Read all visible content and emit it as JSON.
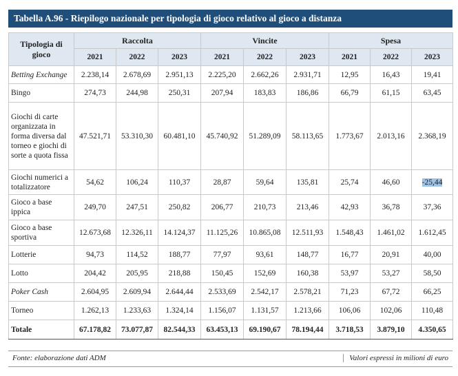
{
  "title": "Tabella A.96 - Riepilogo nazionale per tipologia di gioco relativo al gioco a distanza",
  "header": {
    "row_label": "Tipologia di gioco",
    "groups": [
      "Raccolta",
      "Vincite",
      "Spesa"
    ],
    "years": [
      "2021",
      "2022",
      "2023",
      "2021",
      "2022",
      "2023",
      "2021",
      "2022",
      "2023"
    ]
  },
  "rows": [
    {
      "name": "Betting Exchange",
      "values": [
        "2.238,14",
        "2.678,69",
        "2.951,13",
        "2.225,20",
        "2.662,26",
        "2.931,71",
        "12,95",
        "16,43",
        "19,41"
      ]
    },
    {
      "name": "Bingo",
      "values": [
        "274,73",
        "244,98",
        "250,31",
        "207,94",
        "183,83",
        "186,86",
        "66,79",
        "61,15",
        "63,45"
      ]
    },
    {
      "name": "Giochi di carte organizzata in forma diversa dal torneo e giochi di sorte a quota fissa",
      "values": [
        "47.521,71",
        "53.310,30",
        "60.481,10",
        "45.740,92",
        "51.289,09",
        "58.113,65",
        "1.773,67",
        "2.013,16",
        "2.368,19"
      ]
    },
    {
      "name": "Giochi numerici a totalizzatore",
      "values": [
        "54,62",
        "106,24",
        "110,37",
        "28,87",
        "59,64",
        "135,81",
        "25,74",
        "46,60",
        "-25,44"
      ]
    },
    {
      "name": "Gioco a base ippica",
      "values": [
        "249,70",
        "247,51",
        "250,82",
        "206,77",
        "210,73",
        "213,46",
        "42,93",
        "36,78",
        "37,36"
      ]
    },
    {
      "name": "Gioco a base sportiva",
      "values": [
        "12.673,68",
        "12.326,11",
        "14.124,37",
        "11.125,26",
        "10.865,08",
        "12.511,93",
        "1.548,43",
        "1.461,02",
        "1.612,45"
      ]
    },
    {
      "name": "Lotterie",
      "values": [
        "94,73",
        "114,52",
        "188,77",
        "77,97",
        "93,61",
        "148,77",
        "16,77",
        "20,91",
        "40,00"
      ]
    },
    {
      "name": "Lotto",
      "values": [
        "204,42",
        "205,95",
        "218,88",
        "150,45",
        "152,69",
        "160,38",
        "53,97",
        "53,27",
        "58,50"
      ]
    },
    {
      "name": "Poker Cash",
      "values": [
        "2.604,95",
        "2.609,94",
        "2.644,44",
        "2.533,69",
        "2.542,17",
        "2.578,21",
        "71,23",
        "67,72",
        "66,25"
      ]
    },
    {
      "name": "Torneo",
      "values": [
        "1.262,13",
        "1.233,63",
        "1.324,14",
        "1.156,07",
        "1.131,57",
        "1.213,66",
        "106,06",
        "102,06",
        "110,48"
      ]
    }
  ],
  "total": {
    "name": "Totale",
    "values": [
      "67.178,82",
      "73.077,87",
      "82.544,33",
      "63.453,13",
      "69.190,67",
      "78.194,44",
      "3.718,53",
      "3.879,10",
      "4.350,65"
    ]
  },
  "footer": {
    "source": "Fonte: elaborazione dati ADM",
    "note": "Valori espressi in milioni di euro"
  }
}
